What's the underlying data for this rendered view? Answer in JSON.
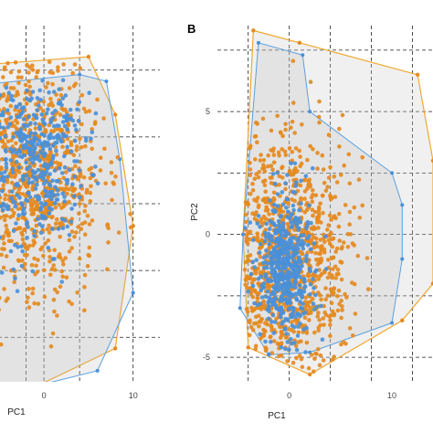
{
  "chart_data": [
    {
      "type": "scatter",
      "panel_label": "",
      "xlabel": "PC1",
      "ylabel": "",
      "x_ticks": [
        0,
        10
      ],
      "y_ticks": [],
      "xlim": [
        -8,
        13
      ],
      "ylim": [
        -6,
        10
      ],
      "grid": true,
      "series": [
        {
          "color": "#e58a1f",
          "hull_color": "#f0a830",
          "center": [
            -2,
            3.5
          ],
          "spread": [
            4.2,
            2.6
          ],
          "n": 900,
          "seed": 11
        },
        {
          "color": "#4a90d9",
          "hull_color": "#5aa0e0",
          "center": [
            -1.5,
            4.0
          ],
          "spread": [
            3.0,
            2.0
          ],
          "n": 420,
          "seed": 23
        }
      ],
      "orange_hull": [
        [
          -8,
          8.2
        ],
        [
          5,
          8.6
        ],
        [
          8,
          6
        ],
        [
          10,
          1
        ],
        [
          8,
          -4.5
        ],
        [
          -5,
          -7
        ],
        [
          -8,
          -6
        ]
      ],
      "blue_hull": [
        [
          -8,
          7.3
        ],
        [
          4,
          7.8
        ],
        [
          7,
          7.5
        ],
        [
          8.5,
          4
        ],
        [
          10,
          -2
        ],
        [
          6,
          -5.5
        ],
        [
          -4,
          -6.5
        ],
        [
          -8,
          -6
        ]
      ]
    },
    {
      "type": "scatter",
      "panel_label": "B",
      "xlabel": "PC1",
      "ylabel": "PC2",
      "x_ticks": [
        0,
        10
      ],
      "y_ticks": [
        -5,
        0,
        5
      ],
      "xlim": [
        -7,
        14
      ],
      "ylim": [
        -6,
        8.5
      ],
      "grid": true,
      "series": [
        {
          "color": "#e58a1f",
          "hull_color": "#f0a830",
          "center": [
            -0.5,
            -1.0
          ],
          "spread": [
            3.0,
            2.4
          ],
          "n": 1000,
          "seed": 37
        },
        {
          "color": "#4a90d9",
          "hull_color": "#5aa0e0",
          "center": [
            -0.3,
            -1.5
          ],
          "spread": [
            1.4,
            1.6
          ],
          "n": 520,
          "seed": 53
        }
      ],
      "orange_hull": [
        [
          -3.5,
          8.3
        ],
        [
          1,
          7.8
        ],
        [
          12.5,
          6.5
        ],
        [
          14,
          3
        ],
        [
          14,
          -2
        ],
        [
          11,
          -3.5
        ],
        [
          2,
          -5.7
        ],
        [
          -4,
          -4.6
        ],
        [
          -4.5,
          0
        ]
      ],
      "blue_hull": [
        [
          -3,
          7.8
        ],
        [
          1.3,
          7.3
        ],
        [
          2,
          5
        ],
        [
          10,
          2.5
        ],
        [
          11,
          1.2
        ],
        [
          11,
          -1
        ],
        [
          10,
          -3.6
        ],
        [
          2,
          -4.8
        ],
        [
          -2,
          -4.9
        ],
        [
          -4.8,
          -3
        ],
        [
          -4.5,
          0
        ]
      ]
    }
  ]
}
